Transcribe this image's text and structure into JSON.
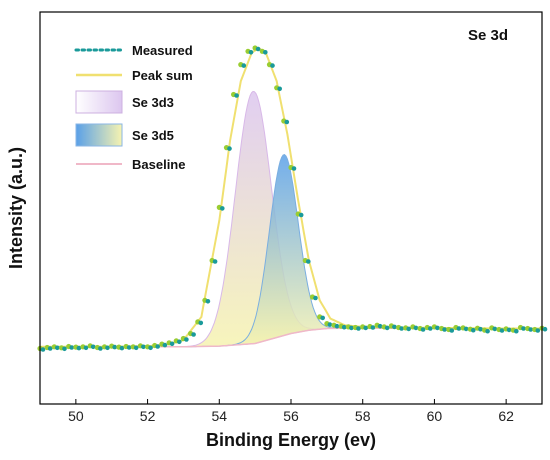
{
  "chart_data": {
    "type": "line",
    "title": "",
    "annotation": "Se  3d",
    "xlabel": "Binding Energy  (ev)",
    "ylabel": "Intensity  (a.u.)",
    "xlim": [
      49,
      63
    ],
    "ylim": [
      0,
      1
    ],
    "x_ticks": [
      50,
      52,
      54,
      56,
      58,
      60,
      62
    ],
    "y_ticks_visible": false,
    "legend_position": "top-left",
    "colors": {
      "measured": "#1a9a9a",
      "measured_fill": "#9acd32",
      "peak_sum": "#f0e070",
      "se3d3_line": "#d8b8e8",
      "se3d3_fill_top": "#dcc6ef",
      "se3d3_fill_bottom": "#f6f3b0",
      "se3d5_line": "#7aaee0",
      "se3d5_fill_top": "#5aa0e8",
      "se3d5_fill_bottom": "#f6f3b0",
      "baseline": "#f0b8c8"
    },
    "series": [
      {
        "name": "Measured",
        "style": "dotted",
        "x": [
          49.0,
          49.2,
          49.4,
          49.6,
          49.8,
          50.0,
          50.2,
          50.4,
          50.6,
          50.8,
          51.0,
          51.2,
          51.4,
          51.6,
          51.8,
          52.0,
          52.2,
          52.4,
          52.6,
          52.8,
          53.0,
          53.2,
          53.4,
          53.6,
          53.8,
          54.0,
          54.2,
          54.4,
          54.6,
          54.8,
          55.0,
          55.2,
          55.4,
          55.6,
          55.8,
          56.0,
          56.2,
          56.4,
          56.6,
          56.8,
          57.0,
          57.2,
          57.4,
          57.6,
          57.8,
          58.0,
          58.2,
          58.4,
          58.6,
          58.8,
          59.0,
          59.2,
          59.4,
          59.6,
          59.8,
          60.0,
          60.2,
          60.4,
          60.6,
          60.8,
          61.0,
          61.2,
          61.4,
          61.6,
          61.8,
          62.0,
          62.2,
          62.4,
          62.6,
          62.8,
          63.0
        ],
        "y": [
          0.095,
          0.098,
          0.1,
          0.097,
          0.101,
          0.099,
          0.1,
          0.103,
          0.098,
          0.1,
          0.102,
          0.099,
          0.101,
          0.1,
          0.103,
          0.1,
          0.104,
          0.108,
          0.112,
          0.118,
          0.125,
          0.14,
          0.175,
          0.24,
          0.36,
          0.52,
          0.7,
          0.86,
          0.95,
          0.99,
          1.0,
          0.99,
          0.95,
          0.88,
          0.78,
          0.64,
          0.5,
          0.36,
          0.25,
          0.19,
          0.17,
          0.165,
          0.162,
          0.16,
          0.158,
          0.16,
          0.161,
          0.165,
          0.16,
          0.163,
          0.158,
          0.157,
          0.16,
          0.155,
          0.158,
          0.16,
          0.155,
          0.152,
          0.158,
          0.157,
          0.153,
          0.156,
          0.15,
          0.157,
          0.152,
          0.154,
          0.15,
          0.158,
          0.155,
          0.152,
          0.156
        ]
      },
      {
        "name": "Peak  sum",
        "x": [
          49.0,
          50.0,
          51.0,
          52.0,
          52.5,
          53.0,
          53.5,
          54.0,
          54.3,
          54.6,
          54.9,
          55.1,
          55.3,
          55.6,
          55.9,
          56.2,
          56.5,
          56.8,
          57.1,
          57.5,
          58.0,
          59.0,
          60.0,
          61.0,
          62.0,
          63.0
        ],
        "y": [
          0.1,
          0.1,
          0.1,
          0.102,
          0.106,
          0.12,
          0.19,
          0.48,
          0.72,
          0.9,
          0.985,
          1.0,
          0.985,
          0.9,
          0.74,
          0.54,
          0.36,
          0.24,
          0.185,
          0.165,
          0.16,
          0.158,
          0.157,
          0.156,
          0.155,
          0.155
        ]
      },
      {
        "name": "Se  3d3",
        "center": 54.95,
        "amplitude": 0.76,
        "sigma": 0.5
      },
      {
        "name": "Se  3d5",
        "center": 55.8,
        "amplitude": 0.545,
        "sigma": 0.4
      },
      {
        "name": "Baseline",
        "x": [
          49.0,
          53.0,
          54.0,
          55.0,
          55.5,
          56.0,
          56.5,
          57.0,
          57.5,
          63.0
        ],
        "y": [
          0.1,
          0.1,
          0.102,
          0.11,
          0.125,
          0.14,
          0.15,
          0.155,
          0.156,
          0.155
        ]
      }
    ]
  }
}
